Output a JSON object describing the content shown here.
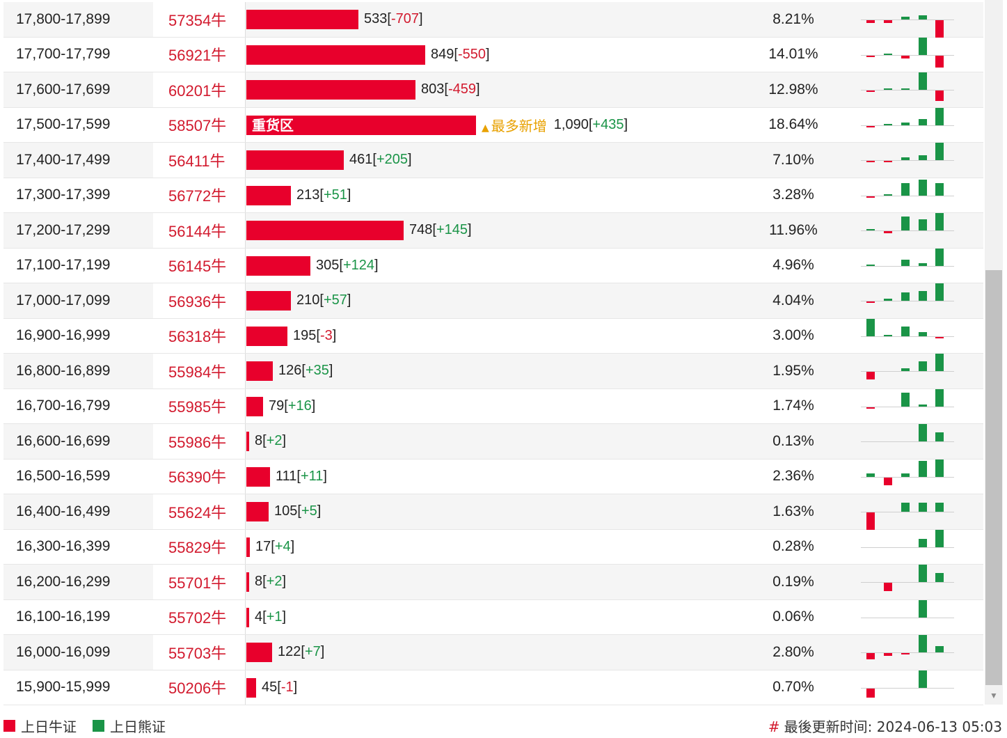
{
  "rows": [
    {
      "range": "17,800-17,899",
      "code": "57354牛",
      "qty": 533,
      "change": "-707",
      "pct": "8.21%",
      "spark": [
        -4,
        -4,
        4,
        6,
        -25
      ]
    },
    {
      "range": "17,700-17,799",
      "code": "56921牛",
      "qty": 849,
      "change": "-550",
      "pct": "14.01%",
      "spark": [
        -2,
        2,
        -4,
        25,
        -17
      ]
    },
    {
      "range": "17,600-17,699",
      "code": "60201牛",
      "qty": 803,
      "change": "-459",
      "pct": "12.98%",
      "spark": [
        -2,
        2,
        2,
        25,
        -15
      ]
    },
    {
      "range": "17,500-17,599",
      "code": "58507牛",
      "qty": 1090,
      "change": "+435",
      "pct": "18.64%",
      "heavy_label": "重货区",
      "flag_label": "最多新增",
      "spark": [
        -2,
        2,
        4,
        9,
        25
      ]
    },
    {
      "range": "17,400-17,499",
      "code": "56411牛",
      "qty": 461,
      "change": "+205",
      "pct": "7.10%",
      "spark": [
        -2,
        -2,
        4,
        7,
        25
      ]
    },
    {
      "range": "17,300-17,399",
      "code": "56772牛",
      "qty": 213,
      "change": "+51",
      "pct": "3.28%",
      "spark": [
        -2,
        2,
        18,
        23,
        18
      ]
    },
    {
      "range": "17,200-17,299",
      "code": "56144牛",
      "qty": 748,
      "change": "+145",
      "pct": "11.96%",
      "spark": [
        2,
        -3,
        20,
        16,
        25
      ]
    },
    {
      "range": "17,100-17,199",
      "code": "56145牛",
      "qty": 305,
      "change": "+124",
      "pct": "4.96%",
      "spark": [
        2,
        0,
        9,
        4,
        25
      ]
    },
    {
      "range": "17,000-17,099",
      "code": "56936牛",
      "qty": 210,
      "change": "+57",
      "pct": "4.04%",
      "spark": [
        -2,
        3,
        12,
        14,
        25
      ]
    },
    {
      "range": "16,900-16,999",
      "code": "56318牛",
      "qty": 195,
      "change": "-3",
      "pct": "3.00%",
      "spark": [
        25,
        2,
        14,
        6,
        -2
      ]
    },
    {
      "range": "16,800-16,899",
      "code": "55984牛",
      "qty": 126,
      "change": "+35",
      "pct": "1.95%",
      "spark": [
        -11,
        0,
        4,
        14,
        25
      ]
    },
    {
      "range": "16,700-16,799",
      "code": "55985牛",
      "qty": 79,
      "change": "+16",
      "pct": "1.74%",
      "spark": [
        -2,
        0,
        20,
        3,
        25
      ]
    },
    {
      "range": "16,600-16,699",
      "code": "55986牛",
      "qty": 8,
      "change": "+2",
      "pct": "0.13%",
      "spark": [
        0,
        0,
        0,
        25,
        13
      ]
    },
    {
      "range": "16,500-16,599",
      "code": "56390牛",
      "qty": 111,
      "change": "+11",
      "pct": "2.36%",
      "spark": [
        5,
        -11,
        5,
        23,
        25
      ]
    },
    {
      "range": "16,400-16,499",
      "code": "55624牛",
      "qty": 105,
      "change": "+5",
      "pct": "1.63%",
      "spark": [
        -25,
        0,
        13,
        13,
        13
      ]
    },
    {
      "range": "16,300-16,399",
      "code": "55829牛",
      "qty": 17,
      "change": "+4",
      "pct": "0.28%",
      "spark": [
        0,
        0,
        0,
        12,
        25
      ]
    },
    {
      "range": "16,200-16,299",
      "code": "55701牛",
      "qty": 8,
      "change": "+2",
      "pct": "0.19%",
      "spark": [
        0,
        -12,
        0,
        25,
        13
      ]
    },
    {
      "range": "16,100-16,199",
      "code": "55702牛",
      "qty": 4,
      "change": "+1",
      "pct": "0.06%",
      "spark": [
        0,
        0,
        0,
        25,
        0
      ]
    },
    {
      "range": "16,000-16,099",
      "code": "55703牛",
      "qty": 122,
      "change": "+7",
      "pct": "2.80%",
      "spark": [
        -9,
        -4,
        -2,
        25,
        9
      ]
    },
    {
      "range": "15,900-15,999",
      "code": "50206牛",
      "qty": 45,
      "change": "-1",
      "pct": "0.70%",
      "spark": [
        -13,
        0,
        0,
        25,
        0
      ]
    }
  ],
  "legend": {
    "bull_label": "上日牛证",
    "bear_label": "上日熊证",
    "bull_color": "#e8002c",
    "bear_color": "#1a9447"
  },
  "footer": {
    "updated_label": "最後更新时间:",
    "updated_time": "2024-06-13 05:03"
  }
}
